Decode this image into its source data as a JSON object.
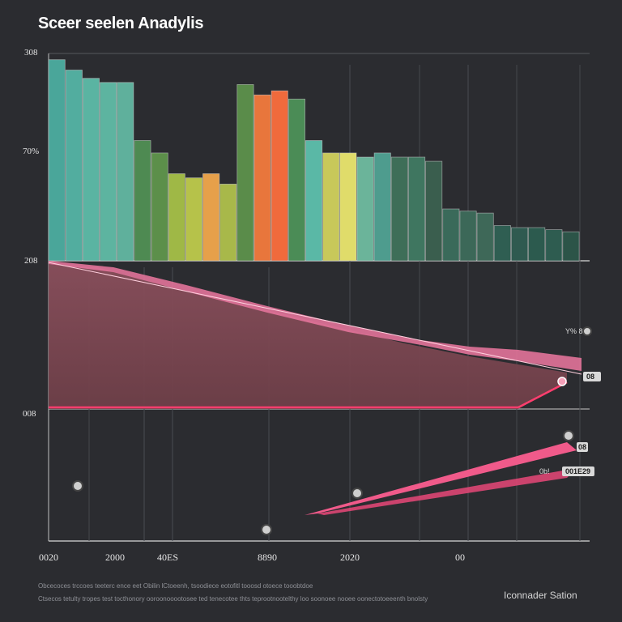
{
  "chart_data": [
    {
      "type": "bar",
      "title": "Sceer seelen Anadylis",
      "y_tick_labels": [
        "308",
        "70%",
        "208"
      ],
      "ylim": [
        0,
        100
      ],
      "values": [
        97,
        92,
        88,
        86,
        86,
        58,
        52,
        42,
        40,
        42,
        37,
        85,
        80,
        82,
        78,
        58,
        52,
        52,
        50,
        52,
        50,
        50,
        48,
        25,
        24,
        23,
        17,
        16,
        16,
        15,
        14
      ],
      "colors": [
        "#4aa69a",
        "#52ad9f",
        "#5ab4a2",
        "#5db4a0",
        "#5fb09c",
        "#4e8a52",
        "#5c8f4a",
        "#9fb846",
        "#b6c24a",
        "#e6a04a",
        "#a8b84a",
        "#5a8c4a",
        "#e8763c",
        "#f06a3c",
        "#4b8c56",
        "#5ab8a6",
        "#c8c85a",
        "#e0dc6a",
        "#6bb49a",
        "#4e9c8e",
        "#3e6e58",
        "#3f7660",
        "#3a5e4e",
        "#3a6a5a",
        "#3c6858",
        "#3e6858",
        "#2f5e52",
        "#2f5a50",
        "#2c5a4e",
        "#2e5c50",
        "#2c5448"
      ]
    },
    {
      "type": "area",
      "series": [
        {
          "name": "pink",
          "values": [
            100,
            97,
            92,
            85,
            78,
            70,
            62,
            58,
            55,
            52,
            28,
            22
          ]
        }
      ],
      "annotations": [
        "Y% 8",
        "08"
      ]
    },
    {
      "type": "line",
      "series": [
        {
          "name": "trend",
          "values": [
            5,
            35,
            63
          ]
        }
      ],
      "annotations": [
        "08",
        "0b!",
        "001E29"
      ],
      "x_tick_labels": [
        "0020",
        "2000",
        "40ES",
        "8890",
        "2020",
        "00"
      ]
    }
  ],
  "y_lower_label": "008",
  "footnote": [
    "Obcecoces trccoes teeterc ence eet Obilin lCtoeenh, tsoodiece eotofitl tooosd otoece tooobtdoe",
    "Ctsecos tetulty tropes test tocthonory ooroonooootosee ted tenecotee thts teprootnootelthy loo soonoee nooee oonectotoeeenth bnolsty"
  ],
  "source": "Iconnader Sation"
}
